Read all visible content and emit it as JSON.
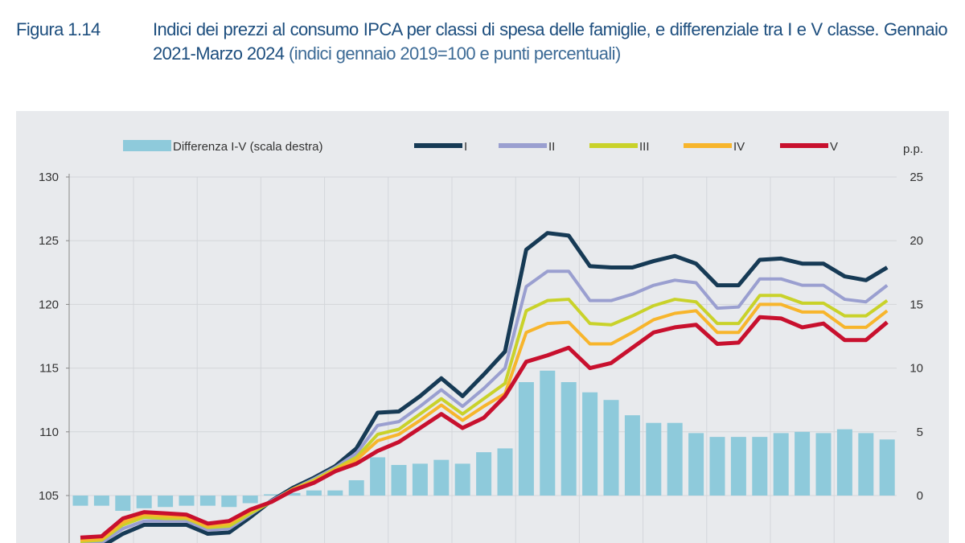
{
  "figure": {
    "number": "Figura 1.14",
    "title": "Indici dei prezzi al consumo IPCA per classi di spesa delle famiglie, e differenziale tra I e V classe. Gennaio 2021-Marzo 2024",
    "subtitle": "(indici gennaio 2019=100 e punti percentuali)"
  },
  "chart_data": {
    "type": "line+bar",
    "x_start": "2021-01",
    "x_end": "2024-03",
    "left_axis": {
      "ticks": [
        "130",
        "125",
        "120",
        "115",
        "110",
        "105"
      ],
      "ylim": [
        100,
        130
      ]
    },
    "right_axis": {
      "label": "p.p.",
      "ticks": [
        "25",
        "20",
        "15",
        "10",
        "5",
        "0"
      ],
      "ylim": [
        -3,
        25
      ]
    },
    "grid": true,
    "legend_position": "top",
    "bars": {
      "name": "Differenza I-V (scala destra)",
      "color": "#8ecadb",
      "values": [
        -0.8,
        -0.8,
        -1.2,
        -1.0,
        -0.9,
        -0.8,
        -0.8,
        -0.9,
        -0.6,
        0.1,
        0.2,
        0.4,
        0.4,
        1.2,
        3.0,
        2.4,
        2.5,
        2.8,
        2.5,
        3.4,
        3.7,
        8.9,
        9.8,
        8.9,
        8.1,
        7.5,
        6.3,
        5.7,
        5.7,
        4.9,
        4.6,
        4.6,
        4.6,
        4.9,
        5.0,
        4.9,
        5.2,
        4.9,
        4.4
      ]
    },
    "series": [
      {
        "name": "I",
        "color": "#163a55",
        "values": [
          100.9,
          101.0,
          102.0,
          102.7,
          102.7,
          102.7,
          102.0,
          102.1,
          103.3,
          104.6,
          105.6,
          106.4,
          107.3,
          108.7,
          111.5,
          111.6,
          112.8,
          114.2,
          112.8,
          114.5,
          116.3,
          124.3,
          125.6,
          125.4,
          123.0,
          122.9,
          122.9,
          123.4,
          123.8,
          123.2,
          121.5,
          121.5,
          123.5,
          123.6,
          123.2,
          123.2,
          122.2,
          121.9,
          122.9
        ]
      },
      {
        "name": "II",
        "color": "#9a9fd0",
        "values": [
          101.2,
          101.3,
          102.4,
          103.0,
          103.0,
          103.0,
          102.3,
          102.4,
          103.5,
          104.6,
          105.5,
          106.3,
          107.2,
          108.3,
          110.5,
          110.8,
          112.0,
          113.3,
          112.0,
          113.4,
          115.0,
          121.4,
          122.6,
          122.6,
          120.3,
          120.3,
          120.8,
          121.5,
          121.9,
          121.7,
          119.7,
          119.8,
          122.0,
          122.0,
          121.5,
          121.5,
          120.4,
          120.2,
          121.5
        ]
      },
      {
        "name": "III",
        "color": "#c9d22a",
        "values": [
          101.4,
          101.5,
          102.7,
          103.3,
          103.2,
          103.2,
          102.5,
          102.6,
          103.6,
          104.5,
          105.5,
          106.2,
          107.1,
          108.0,
          109.8,
          110.2,
          111.4,
          112.6,
          111.4,
          112.6,
          113.8,
          119.5,
          120.3,
          120.4,
          118.5,
          118.4,
          119.1,
          119.9,
          120.4,
          120.2,
          118.5,
          118.5,
          120.7,
          120.7,
          120.1,
          120.1,
          119.1,
          119.1,
          120.3
        ]
      },
      {
        "name": "IV",
        "color": "#f7b52c",
        "values": [
          101.5,
          101.6,
          102.9,
          103.5,
          103.4,
          103.3,
          102.6,
          102.8,
          103.8,
          104.5,
          105.5,
          106.1,
          107.0,
          107.8,
          109.3,
          109.8,
          110.9,
          112.1,
          110.9,
          112.0,
          113.0,
          117.8,
          118.5,
          118.6,
          116.9,
          116.9,
          117.8,
          118.8,
          119.3,
          119.5,
          117.8,
          117.8,
          120.0,
          120.0,
          119.4,
          119.4,
          118.2,
          118.2,
          119.5
        ]
      },
      {
        "name": "V",
        "color": "#c8102e",
        "values": [
          101.7,
          101.8,
          103.2,
          103.7,
          103.6,
          103.5,
          102.8,
          103.0,
          103.9,
          104.5,
          105.4,
          106.0,
          106.9,
          107.5,
          108.5,
          109.2,
          110.3,
          111.4,
          110.3,
          111.1,
          112.8,
          115.5,
          116.0,
          116.6,
          115.0,
          115.4,
          116.6,
          117.8,
          118.2,
          118.4,
          116.9,
          117.0,
          119.0,
          118.9,
          118.2,
          118.5,
          117.2,
          117.2,
          118.6
        ]
      }
    ]
  }
}
